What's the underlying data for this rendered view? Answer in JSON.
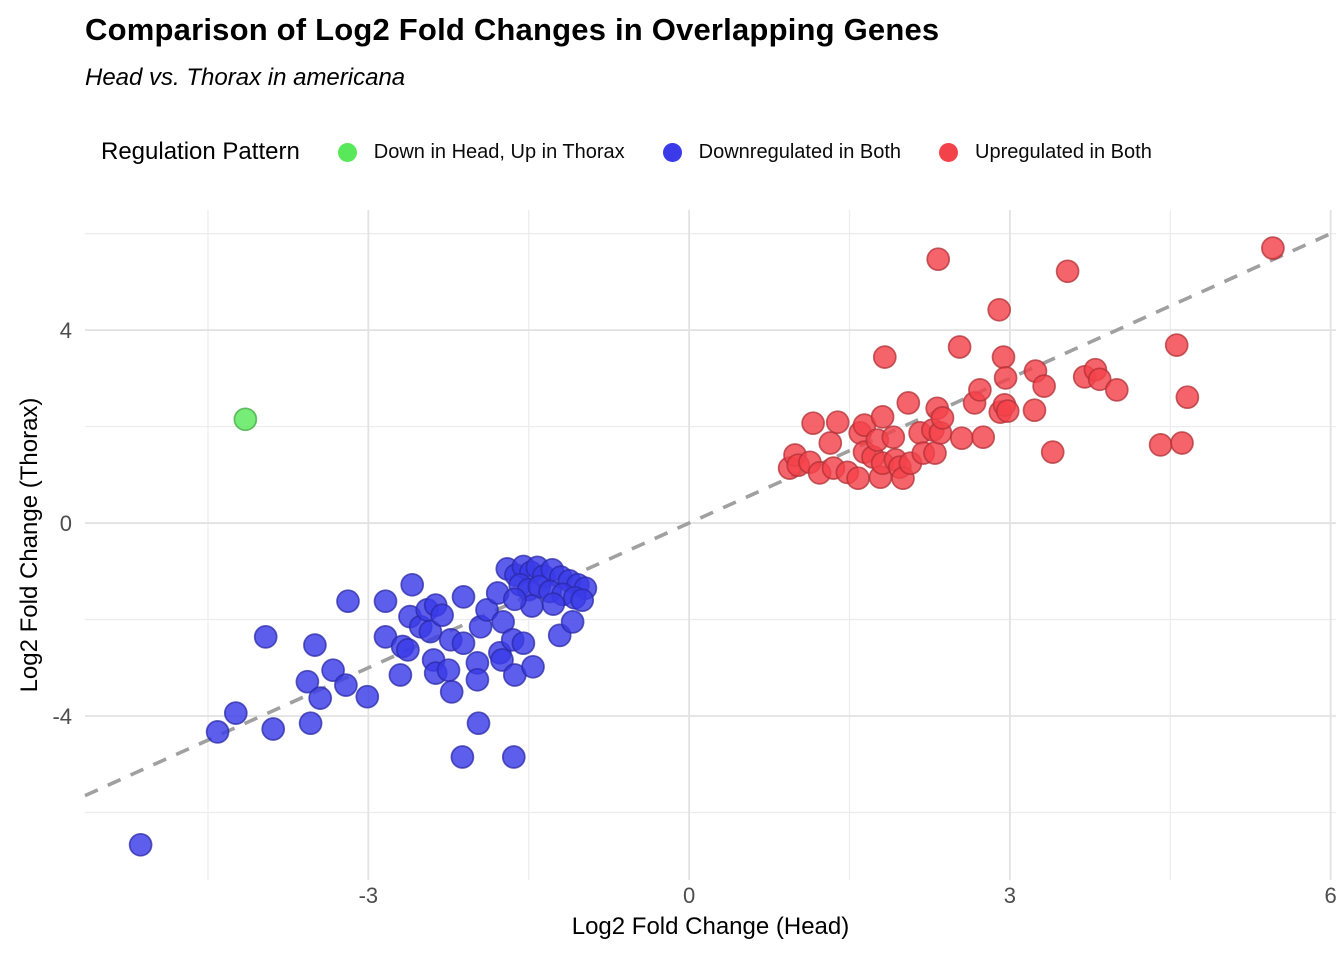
{
  "title": "Comparison of Log2 Fold Changes in Overlapping Genes",
  "subtitle": "Head vs. Thorax in americana",
  "legend": {
    "title": "Regulation Pattern",
    "items": [
      {
        "label": "Down in Head, Up in Thorax",
        "color": "#59E859"
      },
      {
        "label": "Downregulated in Both",
        "color": "#3A3AE8"
      },
      {
        "label": "Upregulated in Both",
        "color": "#F4424A"
      }
    ]
  },
  "chart_data": {
    "type": "scatter",
    "title": "Comparison of Log2 Fold Changes in Overlapping Genes",
    "subtitle": "Head vs. Thorax in americana",
    "xlabel": "Log2 Fold Change (Head)",
    "ylabel": "Log2 Fold Change (Thorax)",
    "xlim": [
      -5.65,
      6.05
    ],
    "ylim": [
      -7.4,
      6.49
    ],
    "x_ticks": [
      -3,
      0,
      3,
      6
    ],
    "y_ticks": [
      -4,
      0,
      4
    ],
    "x_minor_ticks": [
      -4.5,
      -1.5,
      1.5,
      4.5
    ],
    "y_minor_ticks": [
      -6,
      -2,
      2,
      6
    ],
    "grid": true,
    "legend_position": "top",
    "reference_line": {
      "type": "identity y=x",
      "style": "dashed",
      "color": "#A0A0A0"
    },
    "series": [
      {
        "name": "Down in Head, Up in Thorax",
        "color": "#59E859",
        "points": [
          [
            -4.15,
            2.15
          ]
        ]
      },
      {
        "name": "Downregulated in Both",
        "color": "#3A3AE8",
        "points": [
          [
            -5.13,
            -6.67
          ],
          [
            -4.41,
            -4.33
          ],
          [
            -4.24,
            -3.94
          ],
          [
            -3.96,
            -2.36
          ],
          [
            -3.89,
            -4.27
          ],
          [
            -3.57,
            -3.29
          ],
          [
            -3.54,
            -4.15
          ],
          [
            -3.5,
            -2.53
          ],
          [
            -3.45,
            -3.63
          ],
          [
            -3.33,
            -3.05
          ],
          [
            -3.21,
            -3.36
          ],
          [
            -3.19,
            -1.62
          ],
          [
            -3.01,
            -3.6
          ],
          [
            -2.84,
            -1.62
          ],
          [
            -2.84,
            -2.36
          ],
          [
            -2.7,
            -3.15
          ],
          [
            -2.68,
            -2.56
          ],
          [
            -2.63,
            -2.63
          ],
          [
            -2.61,
            -1.94
          ],
          [
            -2.59,
            -1.28
          ],
          [
            -2.51,
            -2.15
          ],
          [
            -2.45,
            -1.8
          ],
          [
            -2.42,
            -2.25
          ],
          [
            -2.39,
            -2.84
          ],
          [
            -2.37,
            -1.7
          ],
          [
            -2.37,
            -3.11
          ],
          [
            -2.31,
            -1.91
          ],
          [
            -2.25,
            -3.05
          ],
          [
            -2.23,
            -2.42
          ],
          [
            -2.22,
            -3.5
          ],
          [
            -2.12,
            -4.85
          ],
          [
            -2.11,
            -1.53
          ],
          [
            -2.11,
            -2.49
          ],
          [
            -1.98,
            -2.9
          ],
          [
            -1.98,
            -3.25
          ],
          [
            -1.97,
            -4.15
          ],
          [
            -1.95,
            -2.15
          ],
          [
            -1.89,
            -1.8
          ],
          [
            -1.79,
            -1.45
          ],
          [
            -1.77,
            -2.69
          ],
          [
            -1.75,
            -2.84
          ],
          [
            -1.74,
            -2.05
          ],
          [
            -1.65,
            -2.42
          ],
          [
            -1.64,
            -4.85
          ],
          [
            -1.63,
            -3.15
          ],
          [
            -1.55,
            -2.49
          ],
          [
            -1.46,
            -2.98
          ],
          [
            -1.21,
            -2.33
          ],
          [
            -1.09,
            -2.05
          ],
          [
            -1.7,
            -0.95
          ],
          [
            -1.62,
            -1.08
          ],
          [
            -1.55,
            -0.9
          ],
          [
            -1.48,
            -1.02
          ],
          [
            -1.42,
            -0.92
          ],
          [
            -1.36,
            -1.1
          ],
          [
            -1.28,
            -0.97
          ],
          [
            -1.2,
            -1.12
          ],
          [
            -1.12,
            -1.2
          ],
          [
            -1.04,
            -1.28
          ],
          [
            -0.97,
            -1.35
          ],
          [
            -1.58,
            -1.28
          ],
          [
            -1.5,
            -1.38
          ],
          [
            -1.4,
            -1.32
          ],
          [
            -1.3,
            -1.42
          ],
          [
            -1.18,
            -1.48
          ],
          [
            -1.07,
            -1.55
          ],
          [
            -1.0,
            -1.6
          ],
          [
            -1.27,
            -1.68
          ],
          [
            -1.47,
            -1.72
          ],
          [
            -1.63,
            -1.58
          ]
        ]
      },
      {
        "name": "Upregulated in Both",
        "color": "#F4424A",
        "points": [
          [
            0.94,
            1.14
          ],
          [
            0.99,
            1.41
          ],
          [
            1.02,
            1.2
          ],
          [
            1.13,
            1.26
          ],
          [
            1.16,
            2.07
          ],
          [
            1.22,
            1.04
          ],
          [
            1.32,
            1.66
          ],
          [
            1.35,
            1.14
          ],
          [
            1.39,
            2.09
          ],
          [
            1.48,
            1.05
          ],
          [
            1.58,
            0.93
          ],
          [
            1.6,
            1.87
          ],
          [
            1.64,
            1.47
          ],
          [
            1.64,
            2.03
          ],
          [
            1.72,
            1.37
          ],
          [
            1.76,
            1.72
          ],
          [
            1.79,
            0.95
          ],
          [
            1.81,
            1.24
          ],
          [
            1.81,
            2.2
          ],
          [
            1.83,
            3.44
          ],
          [
            1.91,
            1.78
          ],
          [
            1.93,
            1.31
          ],
          [
            1.97,
            1.16
          ],
          [
            2.0,
            0.93
          ],
          [
            2.05,
            2.49
          ],
          [
            2.07,
            1.24
          ],
          [
            2.16,
            1.87
          ],
          [
            2.19,
            1.45
          ],
          [
            2.28,
            1.93
          ],
          [
            2.3,
            1.45
          ],
          [
            2.32,
            2.38
          ],
          [
            2.33,
            5.47
          ],
          [
            2.35,
            1.87
          ],
          [
            2.37,
            2.18
          ],
          [
            2.53,
            3.65
          ],
          [
            2.55,
            1.76
          ],
          [
            2.67,
            2.49
          ],
          [
            2.72,
            2.76
          ],
          [
            2.75,
            1.78
          ],
          [
            2.9,
            4.42
          ],
          [
            2.91,
            2.3
          ],
          [
            2.94,
            3.44
          ],
          [
            2.95,
            2.45
          ],
          [
            2.98,
            2.32
          ],
          [
            2.96,
            3.01
          ],
          [
            3.23,
            2.34
          ],
          [
            3.24,
            3.15
          ],
          [
            3.32,
            2.84
          ],
          [
            3.4,
            1.47
          ],
          [
            3.54,
            5.22
          ],
          [
            3.7,
            3.03
          ],
          [
            3.8,
            3.18
          ],
          [
            3.84,
            2.98
          ],
          [
            4.0,
            2.76
          ],
          [
            4.41,
            1.62
          ],
          [
            4.56,
            3.69
          ],
          [
            4.61,
            1.66
          ],
          [
            4.66,
            2.61
          ],
          [
            5.46,
            5.7
          ]
        ]
      }
    ]
  }
}
